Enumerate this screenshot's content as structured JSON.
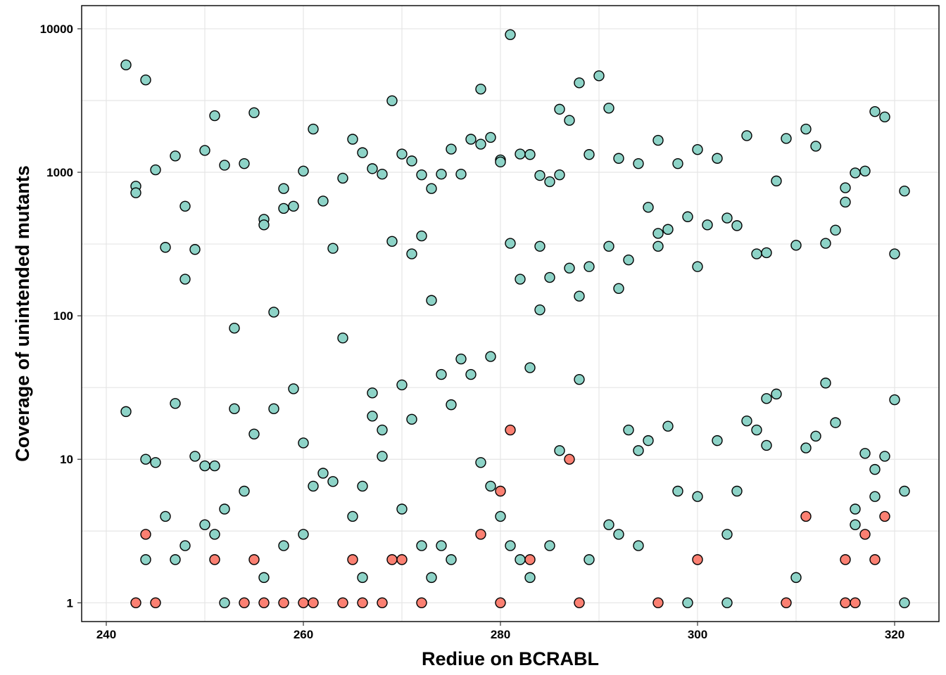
{
  "chart_data": {
    "type": "scatter",
    "title": "",
    "xlabel": "Rediue on BCRABL",
    "ylabel": "Coverage of unintended mutants",
    "x_scale": "linear",
    "y_scale": "log10",
    "xlim": [
      237.5,
      324.5
    ],
    "ylim": [
      0.74,
      14500
    ],
    "x_ticks": [
      240,
      260,
      280,
      300,
      320
    ],
    "x_tick_labels": [
      "240",
      "260",
      "280",
      "300",
      "320"
    ],
    "y_ticks": [
      1,
      10,
      100,
      1000,
      10000
    ],
    "y_tick_labels": [
      "1",
      "10",
      "100",
      "1000",
      "10000"
    ],
    "grid": true,
    "legend": "none",
    "colors": {
      "teal": "#8dd3c7",
      "red": "#fb8072",
      "outline": "#000000",
      "grid": "#e5e5e5"
    },
    "series": [
      {
        "color": "#8dd3c7",
        "points": [
          [
            242,
            5600
          ],
          [
            242,
            21.5
          ],
          [
            243,
            800
          ],
          [
            243,
            720
          ],
          [
            244,
            4400
          ],
          [
            244,
            10
          ],
          [
            244,
            2
          ],
          [
            245,
            1040
          ],
          [
            245,
            9.5
          ],
          [
            246,
            300
          ],
          [
            246,
            4
          ],
          [
            247,
            1300
          ],
          [
            247,
            24.5
          ],
          [
            247,
            2
          ],
          [
            248,
            580
          ],
          [
            248,
            180
          ],
          [
            248,
            2.5
          ],
          [
            249,
            290
          ],
          [
            249,
            10.5
          ],
          [
            250,
            1420
          ],
          [
            250,
            9
          ],
          [
            250,
            3.5
          ],
          [
            251,
            2480
          ],
          [
            251,
            9
          ],
          [
            251,
            3
          ],
          [
            252,
            1120
          ],
          [
            252,
            4.5
          ],
          [
            252,
            1
          ],
          [
            253,
            82
          ],
          [
            253,
            22.5
          ],
          [
            254,
            1150
          ],
          [
            254,
            6
          ],
          [
            255,
            2600
          ],
          [
            255,
            15
          ],
          [
            256,
            470
          ],
          [
            256,
            430
          ],
          [
            256,
            1.5
          ],
          [
            257,
            106
          ],
          [
            257,
            22.5
          ],
          [
            258,
            770
          ],
          [
            258,
            560
          ],
          [
            258,
            2.5
          ],
          [
            259,
            580
          ],
          [
            259,
            31
          ],
          [
            260,
            1020
          ],
          [
            260,
            13
          ],
          [
            260,
            3
          ],
          [
            261,
            2000
          ],
          [
            261,
            6.5
          ],
          [
            262,
            630
          ],
          [
            262,
            8
          ],
          [
            263,
            295
          ],
          [
            263,
            7
          ],
          [
            264,
            910
          ],
          [
            264,
            70
          ],
          [
            265,
            1700
          ],
          [
            265,
            4
          ],
          [
            266,
            1370
          ],
          [
            266,
            6.5
          ],
          [
            266,
            1.5
          ],
          [
            267,
            1060
          ],
          [
            267,
            29
          ],
          [
            267,
            20
          ],
          [
            268,
            970
          ],
          [
            268,
            16
          ],
          [
            268,
            10.5
          ],
          [
            269,
            3150
          ],
          [
            269,
            330
          ],
          [
            270,
            1340
          ],
          [
            270,
            33
          ],
          [
            270,
            4.5
          ],
          [
            271,
            1200
          ],
          [
            271,
            270
          ],
          [
            271,
            19
          ],
          [
            272,
            960
          ],
          [
            272,
            360
          ],
          [
            272,
            2.5
          ],
          [
            273,
            770
          ],
          [
            273,
            128
          ],
          [
            273,
            1.5
          ],
          [
            274,
            970
          ],
          [
            274,
            39
          ],
          [
            274,
            2.5
          ],
          [
            275,
            1450
          ],
          [
            275,
            24
          ],
          [
            275,
            2
          ],
          [
            276,
            970
          ],
          [
            276,
            50
          ],
          [
            277,
            1700
          ],
          [
            277,
            39
          ],
          [
            278,
            3800
          ],
          [
            278,
            1570
          ],
          [
            278,
            9.5
          ],
          [
            279,
            1750
          ],
          [
            279,
            52
          ],
          [
            279,
            6.5
          ],
          [
            280,
            1220
          ],
          [
            280,
            1180
          ],
          [
            280,
            4
          ],
          [
            281,
            9100
          ],
          [
            281,
            320
          ],
          [
            281,
            2.5
          ],
          [
            282,
            1340
          ],
          [
            282,
            180
          ],
          [
            282,
            2
          ],
          [
            283,
            1330
          ],
          [
            283,
            43.5
          ],
          [
            283,
            1.5
          ],
          [
            284,
            950
          ],
          [
            284,
            305
          ],
          [
            284,
            110
          ],
          [
            285,
            860
          ],
          [
            285,
            185
          ],
          [
            285,
            2.5
          ],
          [
            286,
            2750
          ],
          [
            286,
            960
          ],
          [
            286,
            11.5
          ],
          [
            287,
            2300
          ],
          [
            287,
            215
          ],
          [
            288,
            4200
          ],
          [
            288,
            137
          ],
          [
            288,
            36
          ],
          [
            289,
            1330
          ],
          [
            289,
            220
          ],
          [
            289,
            2
          ],
          [
            290,
            4700
          ],
          [
            291,
            2800
          ],
          [
            291,
            305
          ],
          [
            291,
            3.5
          ],
          [
            292,
            1250
          ],
          [
            292,
            155
          ],
          [
            292,
            3
          ],
          [
            293,
            245
          ],
          [
            293,
            16
          ],
          [
            294,
            1150
          ],
          [
            294,
            11.5
          ],
          [
            294,
            2.5
          ],
          [
            295,
            570
          ],
          [
            295,
            13.5
          ],
          [
            296,
            1670
          ],
          [
            296,
            375
          ],
          [
            296,
            305
          ],
          [
            297,
            400
          ],
          [
            297,
            17
          ],
          [
            298,
            1150
          ],
          [
            298,
            6
          ],
          [
            299,
            490
          ],
          [
            299,
            1
          ],
          [
            300,
            1440
          ],
          [
            300,
            220
          ],
          [
            300,
            5.5
          ],
          [
            301,
            430
          ],
          [
            302,
            1250
          ],
          [
            302,
            13.5
          ],
          [
            303,
            480
          ],
          [
            303,
            3
          ],
          [
            303,
            1
          ],
          [
            304,
            425
          ],
          [
            304,
            6
          ],
          [
            305,
            1800
          ],
          [
            305,
            18.5
          ],
          [
            306,
            270
          ],
          [
            306,
            16
          ],
          [
            307,
            275
          ],
          [
            307,
            26.5
          ],
          [
            307,
            12.5
          ],
          [
            308,
            870
          ],
          [
            308,
            28.5
          ],
          [
            309,
            1720
          ],
          [
            310,
            310
          ],
          [
            310,
            1.5
          ],
          [
            311,
            2000
          ],
          [
            311,
            12
          ],
          [
            312,
            1520
          ],
          [
            312,
            14.5
          ],
          [
            313,
            320
          ],
          [
            313,
            34
          ],
          [
            314,
            395
          ],
          [
            314,
            18
          ],
          [
            315,
            780
          ],
          [
            315,
            620
          ],
          [
            316,
            990
          ],
          [
            316,
            4.5
          ],
          [
            316,
            3.5
          ],
          [
            317,
            1020
          ],
          [
            317,
            11
          ],
          [
            318,
            2650
          ],
          [
            318,
            8.5
          ],
          [
            318,
            5.5
          ],
          [
            319,
            2430
          ],
          [
            319,
            10.5
          ],
          [
            320,
            270
          ],
          [
            320,
            26
          ],
          [
            321,
            740
          ],
          [
            321,
            6
          ],
          [
            321,
            1
          ]
        ]
      },
      {
        "color": "#fb8072",
        "points": [
          [
            243,
            1
          ],
          [
            244,
            3
          ],
          [
            245,
            1
          ],
          [
            251,
            2
          ],
          [
            254,
            1
          ],
          [
            255,
            2
          ],
          [
            256,
            1
          ],
          [
            258,
            1
          ],
          [
            260,
            1
          ],
          [
            261,
            1
          ],
          [
            264,
            1
          ],
          [
            265,
            2
          ],
          [
            266,
            1
          ],
          [
            268,
            1
          ],
          [
            269,
            2
          ],
          [
            270,
            2
          ],
          [
            272,
            1
          ],
          [
            278,
            3
          ],
          [
            280,
            6
          ],
          [
            280,
            1
          ],
          [
            281,
            16
          ],
          [
            283,
            2
          ],
          [
            287,
            10
          ],
          [
            288,
            1
          ],
          [
            296,
            1
          ],
          [
            300,
            2
          ],
          [
            309,
            1
          ],
          [
            311,
            4
          ],
          [
            315,
            2
          ],
          [
            315,
            1
          ],
          [
            316,
            1
          ],
          [
            317,
            3
          ],
          [
            318,
            2
          ],
          [
            319,
            4
          ]
        ]
      }
    ]
  }
}
